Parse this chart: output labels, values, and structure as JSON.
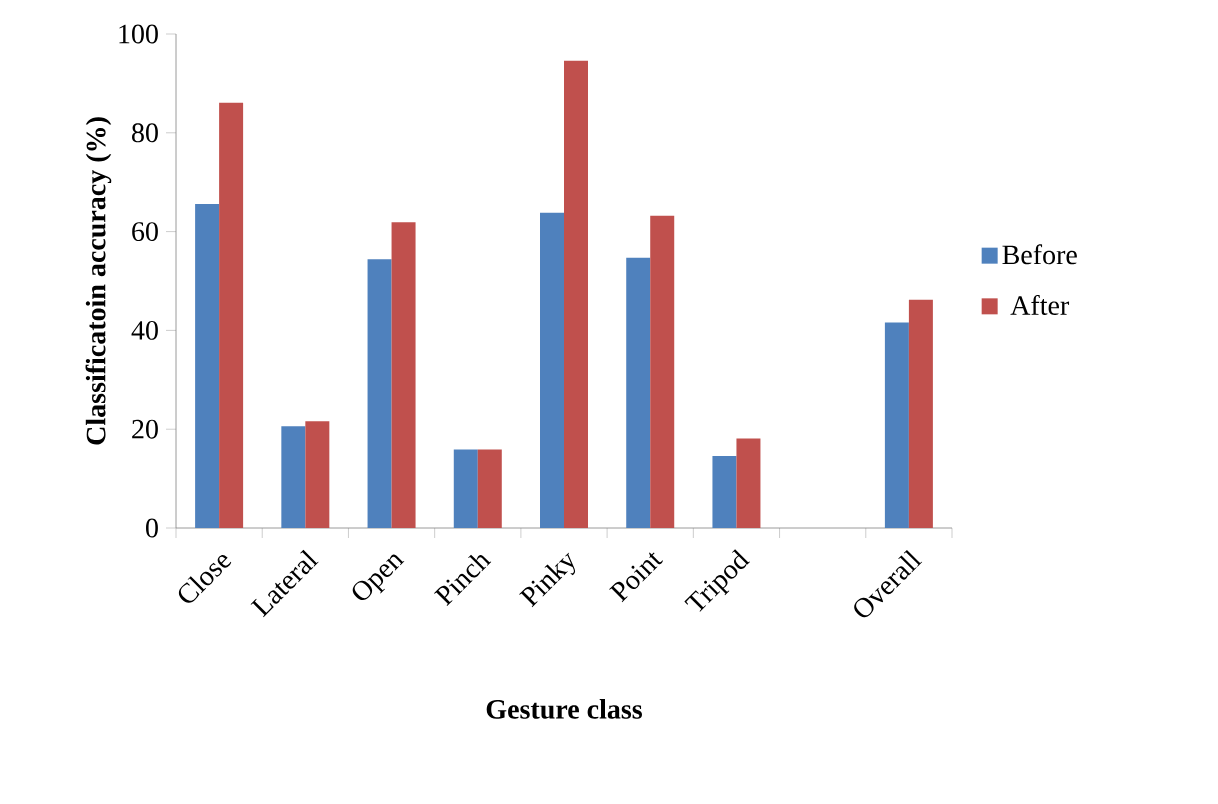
{
  "chart_data": {
    "type": "bar",
    "xlabel": "Gesture class",
    "ylabel": "Classificatoin accuracy (%)",
    "categories": [
      "Close",
      "Lateral",
      "Open",
      "Pinch",
      "Pinky",
      "Point",
      "Tripod",
      null,
      "Overall"
    ],
    "series": [
      {
        "name": "Before",
        "color": "#4f81bd",
        "values": [
          65.6,
          20.6,
          54.4,
          15.9,
          63.8,
          54.7,
          14.6,
          null,
          41.6
        ]
      },
      {
        "name": "After",
        "color": "#c0504d",
        "values": [
          86.1,
          21.6,
          61.9,
          15.9,
          94.6,
          63.2,
          18.1,
          null,
          46.2
        ]
      }
    ],
    "ylim": [
      0,
      100
    ],
    "yticks": [
      0,
      20,
      40,
      60,
      80,
      100
    ],
    "legend": "right",
    "grid": false
  }
}
